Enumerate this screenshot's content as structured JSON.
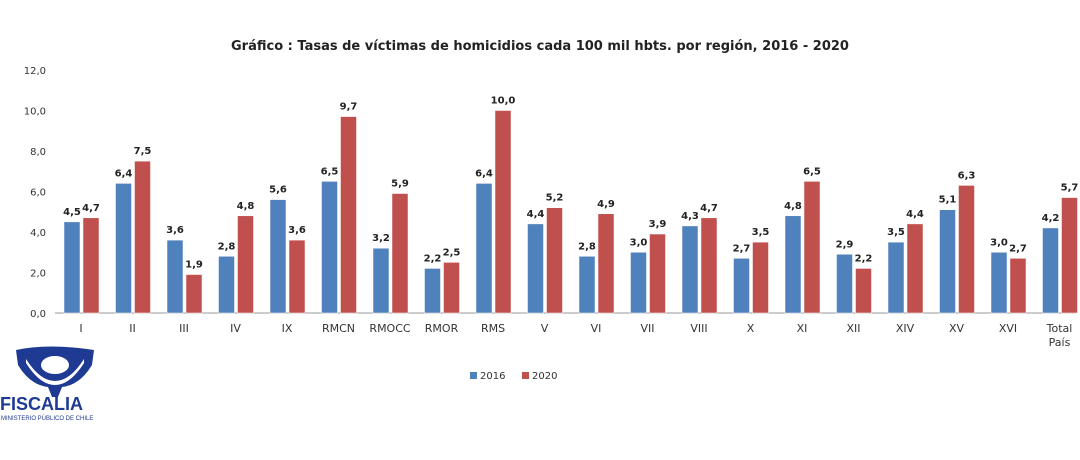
{
  "chart_data": {
    "type": "bar",
    "title": "Gráfico : Tasas de víctimas de homicidios cada 100 mil hbts. por región, 2016 - 2020",
    "categories": [
      "I",
      "II",
      "III",
      "IV",
      "IX",
      "RMCN",
      "RMOCC",
      "RMOR",
      "RMS",
      "V",
      "VI",
      "VII",
      "VIII",
      "X",
      "XI",
      "XII",
      "XIV",
      "XV",
      "XVI",
      "Total País"
    ],
    "series": [
      {
        "name": "2016",
        "color": "#4F81BD",
        "values": [
          4.5,
          6.4,
          3.6,
          2.8,
          5.6,
          6.5,
          3.2,
          2.2,
          6.4,
          4.4,
          2.8,
          3.0,
          4.3,
          2.7,
          4.8,
          2.9,
          3.5,
          5.1,
          3.0,
          4.2
        ]
      },
      {
        "name": "2020",
        "color": "#C0504D",
        "values": [
          4.7,
          7.5,
          1.9,
          4.8,
          3.6,
          9.7,
          5.9,
          2.5,
          10.0,
          5.2,
          4.9,
          3.9,
          4.7,
          3.5,
          6.5,
          2.2,
          4.4,
          6.3,
          2.7,
          5.7
        ]
      }
    ],
    "ylim": [
      0,
      12
    ],
    "yticks": [
      "0,0",
      "2,0",
      "4,0",
      "6,0",
      "8,0",
      "10,0",
      "12,0"
    ],
    "legend": "bottom",
    "grid": false
  },
  "logo": {
    "name": "FISCALIA",
    "subtitle": "MINISTERIO PÚBLICO DE CHILE",
    "color": "#1F3A93"
  }
}
